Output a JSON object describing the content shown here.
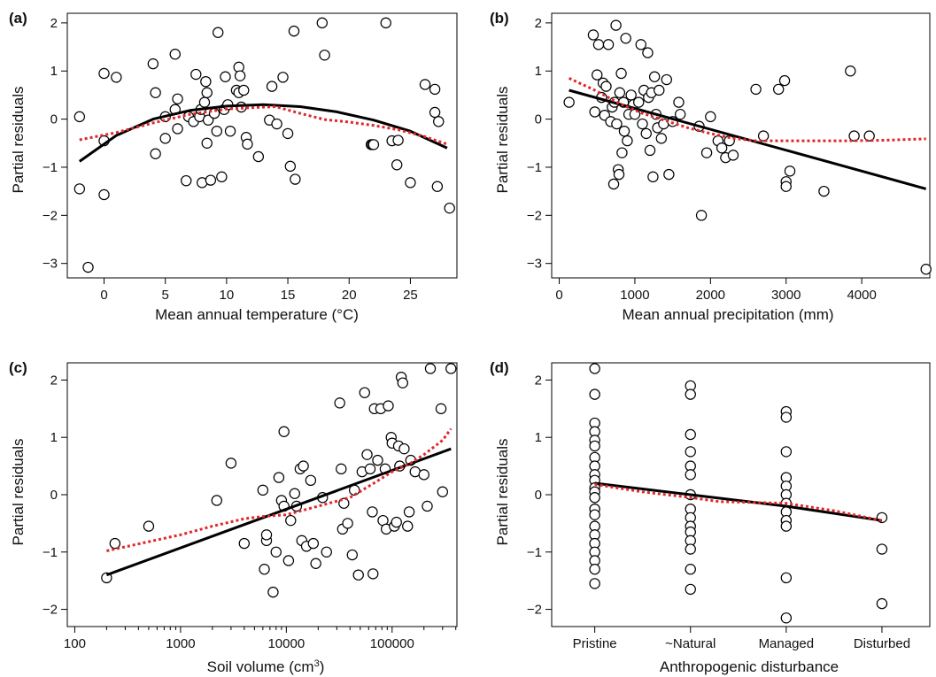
{
  "colors": {
    "fit_line": "#000000",
    "smooth_line": "#e0262b",
    "point_stroke": "#000000",
    "axis": "#000000"
  },
  "chart_data": [
    {
      "panel": "(a)",
      "type": "scatter",
      "xlabel": "Mean annual temperature (°C)",
      "ylabel": "Partial residuals",
      "x_ticks": [
        0,
        5,
        10,
        15,
        20,
        25
      ],
      "y_ticks": [
        -3,
        -2,
        -1,
        0,
        1,
        2
      ],
      "xlim": [
        -3,
        28.8
      ],
      "ylim": [
        -3.3,
        2.2
      ],
      "points": [
        [
          -2,
          0.05
        ],
        [
          -2,
          -1.45
        ],
        [
          -1.3,
          -3.08
        ],
        [
          0,
          0.95
        ],
        [
          0,
          -0.45
        ],
        [
          0,
          -1.57
        ],
        [
          1,
          0.87
        ],
        [
          4,
          1.15
        ],
        [
          4.2,
          0.55
        ],
        [
          4.2,
          -0.72
        ],
        [
          5,
          0.05
        ],
        [
          5,
          -0.4
        ],
        [
          5.8,
          1.35
        ],
        [
          5.8,
          0.2
        ],
        [
          6,
          -0.2
        ],
        [
          6,
          0.42
        ],
        [
          6.7,
          -1.28
        ],
        [
          6.9,
          0.05
        ],
        [
          7.3,
          -0.05
        ],
        [
          7.5,
          0.93
        ],
        [
          7.8,
          0.05
        ],
        [
          7.9,
          0.2
        ],
        [
          8,
          -1.32
        ],
        [
          8.2,
          0.35
        ],
        [
          8.3,
          0.78
        ],
        [
          8.4,
          0.55
        ],
        [
          8.4,
          -0.5
        ],
        [
          8.5,
          -0.02
        ],
        [
          8.7,
          -1.27
        ],
        [
          9,
          0.12
        ],
        [
          9.2,
          -0.25
        ],
        [
          9.3,
          1.8
        ],
        [
          9.6,
          -1.2
        ],
        [
          9.8,
          0.2
        ],
        [
          9.9,
          0.88
        ],
        [
          10.1,
          0.3
        ],
        [
          10.3,
          -0.25
        ],
        [
          10.8,
          0.6
        ],
        [
          11,
          1.08
        ],
        [
          11.1,
          0.9
        ],
        [
          11,
          0.55
        ],
        [
          11.2,
          0.25
        ],
        [
          11.4,
          0.6
        ],
        [
          11.6,
          -0.38
        ],
        [
          11.7,
          -0.52
        ],
        [
          12.6,
          -0.78
        ],
        [
          13.5,
          -0.02
        ],
        [
          13.7,
          0.68
        ],
        [
          14.1,
          -0.1
        ],
        [
          14.6,
          0.87
        ],
        [
          15,
          -0.3
        ],
        [
          15.2,
          -0.98
        ],
        [
          15.5,
          1.83
        ],
        [
          15.6,
          -1.25
        ],
        [
          17.8,
          2.0
        ],
        [
          18,
          1.33
        ],
        [
          21.8,
          -0.53
        ],
        [
          21.9,
          -0.53
        ],
        [
          22,
          -0.53
        ],
        [
          23,
          2.0
        ],
        [
          23.5,
          -0.45
        ],
        [
          23.9,
          -0.95
        ],
        [
          24,
          -0.44
        ],
        [
          25,
          -1.32
        ],
        [
          26.2,
          0.72
        ],
        [
          27,
          0.62
        ],
        [
          27,
          0.14
        ],
        [
          27.2,
          -1.4
        ],
        [
          27.3,
          -0.05
        ],
        [
          28.2,
          -1.85
        ]
      ],
      "fit_line": [
        [
          -2,
          -0.88
        ],
        [
          1,
          -0.34
        ],
        [
          4,
          0.0
        ],
        [
          7,
          0.18
        ],
        [
          10,
          0.27
        ],
        [
          13,
          0.3
        ],
        [
          16,
          0.26
        ],
        [
          19,
          0.15
        ],
        [
          22,
          -0.02
        ],
        [
          25,
          -0.25
        ],
        [
          28,
          -0.6
        ]
      ],
      "smooth_line": [
        [
          -2,
          -0.43
        ],
        [
          1,
          -0.28
        ],
        [
          4,
          -0.08
        ],
        [
          7,
          0.1
        ],
        [
          10,
          0.21
        ],
        [
          12,
          0.24
        ],
        [
          14,
          0.26
        ],
        [
          16,
          0.12
        ],
        [
          18,
          -0.01
        ],
        [
          20,
          -0.06
        ],
        [
          22,
          -0.13
        ],
        [
          24,
          -0.22
        ],
        [
          26,
          -0.35
        ],
        [
          28,
          -0.52
        ]
      ]
    },
    {
      "panel": "(b)",
      "type": "scatter",
      "xlabel": "Mean annual precipitation (mm)",
      "ylabel": "Partial residuals",
      "x_ticks": [
        0,
        1000,
        2000,
        3000,
        4000
      ],
      "y_ticks": [
        -3,
        -2,
        -1,
        0,
        1,
        2
      ],
      "xlim": [
        -100,
        4900
      ],
      "ylim": [
        -3.3,
        2.2
      ],
      "points": [
        [
          130,
          0.35
        ],
        [
          450,
          1.75
        ],
        [
          470,
          0.15
        ],
        [
          500,
          0.92
        ],
        [
          520,
          1.55
        ],
        [
          560,
          0.45
        ],
        [
          580,
          0.75
        ],
        [
          600,
          0.08
        ],
        [
          620,
          0.68
        ],
        [
          650,
          1.55
        ],
        [
          680,
          -0.05
        ],
        [
          700,
          0.25
        ],
        [
          720,
          -1.35
        ],
        [
          730,
          0.35
        ],
        [
          750,
          1.95
        ],
        [
          760,
          -0.1
        ],
        [
          780,
          -1.05
        ],
        [
          790,
          -1.15
        ],
        [
          800,
          0.55
        ],
        [
          820,
          0.95
        ],
        [
          830,
          -0.7
        ],
        [
          850,
          0.35
        ],
        [
          860,
          -0.25
        ],
        [
          880,
          1.68
        ],
        [
          900,
          -0.45
        ],
        [
          920,
          0.1
        ],
        [
          950,
          0.5
        ],
        [
          980,
          0.3
        ],
        [
          1000,
          0.1
        ],
        [
          1050,
          0.35
        ],
        [
          1080,
          1.55
        ],
        [
          1100,
          -0.1
        ],
        [
          1120,
          0.6
        ],
        [
          1150,
          -0.3
        ],
        [
          1170,
          1.38
        ],
        [
          1180,
          0.45
        ],
        [
          1200,
          -0.65
        ],
        [
          1220,
          0.55
        ],
        [
          1240,
          -1.2
        ],
        [
          1260,
          0.88
        ],
        [
          1280,
          0.1
        ],
        [
          1300,
          -0.18
        ],
        [
          1320,
          0.6
        ],
        [
          1350,
          -0.4
        ],
        [
          1380,
          -0.1
        ],
        [
          1420,
          0.82
        ],
        [
          1450,
          -1.15
        ],
        [
          1500,
          -0.05
        ],
        [
          1580,
          0.35
        ],
        [
          1600,
          0.1
        ],
        [
          1850,
          -0.15
        ],
        [
          1880,
          -2.0
        ],
        [
          1950,
          -0.7
        ],
        [
          2000,
          0.05
        ],
        [
          2100,
          -0.45
        ],
        [
          2150,
          -0.6
        ],
        [
          2200,
          -0.8
        ],
        [
          2250,
          -0.45
        ],
        [
          2300,
          -0.75
        ],
        [
          2600,
          0.62
        ],
        [
          2700,
          -0.35
        ],
        [
          2900,
          0.62
        ],
        [
          2980,
          0.8
        ],
        [
          3000,
          -1.3
        ],
        [
          3000,
          -1.4
        ],
        [
          3050,
          -1.08
        ],
        [
          3500,
          -1.5
        ],
        [
          3850,
          1.0
        ],
        [
          3900,
          -0.35
        ],
        [
          4100,
          -0.35
        ],
        [
          4850,
          -3.12
        ]
      ],
      "fit_line": [
        [
          130,
          0.6
        ],
        [
          4850,
          -1.45
        ]
      ],
      "smooth_line": [
        [
          130,
          0.85
        ],
        [
          500,
          0.58
        ],
        [
          800,
          0.32
        ],
        [
          1100,
          0.12
        ],
        [
          1400,
          -0.03
        ],
        [
          1700,
          -0.18
        ],
        [
          2000,
          -0.3
        ],
        [
          2300,
          -0.4
        ],
        [
          2600,
          -0.45
        ],
        [
          2900,
          -0.45
        ],
        [
          3300,
          -0.45
        ],
        [
          3800,
          -0.45
        ],
        [
          4300,
          -0.44
        ],
        [
          4850,
          -0.41
        ]
      ]
    },
    {
      "panel": "(c)",
      "type": "scatter",
      "x_scale": "log",
      "xlabel": "Soil volume (cm",
      "xlabel_sup": "3",
      "xlabel_end": ")",
      "ylabel": "Partial residuals",
      "x_ticks": [
        100,
        1000,
        10000,
        100000
      ],
      "x_tick_labels": [
        "100",
        "1000",
        "10000",
        "100000"
      ],
      "y_ticks": [
        -2,
        -1,
        0,
        1,
        2
      ],
      "xlim": [
        85,
        410000
      ],
      "ylim": [
        -2.3,
        2.3
      ],
      "points": [
        [
          200,
          -1.45
        ],
        [
          240,
          -0.85
        ],
        [
          500,
          -0.55
        ],
        [
          2200,
          -0.1
        ],
        [
          3000,
          0.55
        ],
        [
          4000,
          -0.85
        ],
        [
          6000,
          0.08
        ],
        [
          6200,
          -1.3
        ],
        [
          6500,
          -0.8
        ],
        [
          6500,
          -0.7
        ],
        [
          7500,
          -1.7
        ],
        [
          8000,
          -1.0
        ],
        [
          8500,
          0.3
        ],
        [
          9000,
          -0.1
        ],
        [
          9500,
          1.1
        ],
        [
          9500,
          -0.2
        ],
        [
          10500,
          -1.15
        ],
        [
          11000,
          -0.45
        ],
        [
          12000,
          0.02
        ],
        [
          12500,
          -0.2
        ],
        [
          13500,
          0.45
        ],
        [
          14000,
          -0.8
        ],
        [
          14500,
          0.5
        ],
        [
          15500,
          -0.9
        ],
        [
          17000,
          0.25
        ],
        [
          18000,
          -0.85
        ],
        [
          19000,
          -1.2
        ],
        [
          22000,
          -0.05
        ],
        [
          24000,
          -1.0
        ],
        [
          32000,
          1.6
        ],
        [
          33000,
          0.45
        ],
        [
          34000,
          -0.6
        ],
        [
          35000,
          -0.15
        ],
        [
          38000,
          -0.5
        ],
        [
          42000,
          -1.05
        ],
        [
          44000,
          0.08
        ],
        [
          48000,
          -1.4
        ],
        [
          52000,
          0.4
        ],
        [
          55000,
          1.78
        ],
        [
          58000,
          0.7
        ],
        [
          62000,
          0.45
        ],
        [
          65000,
          -0.3
        ],
        [
          66000,
          -1.38
        ],
        [
          68000,
          1.5
        ],
        [
          73000,
          0.6
        ],
        [
          78000,
          1.5
        ],
        [
          82000,
          -0.45
        ],
        [
          86000,
          0.45
        ],
        [
          88000,
          -0.6
        ],
        [
          92000,
          1.55
        ],
        [
          98000,
          1.0
        ],
        [
          100000,
          0.9
        ],
        [
          105000,
          -0.55
        ],
        [
          110000,
          -0.48
        ],
        [
          115000,
          0.85
        ],
        [
          118000,
          0.5
        ],
        [
          122000,
          2.05
        ],
        [
          126000,
          1.95
        ],
        [
          130000,
          0.8
        ],
        [
          140000,
          -0.55
        ],
        [
          145000,
          -0.3
        ],
        [
          150000,
          0.6
        ],
        [
          165000,
          0.4
        ],
        [
          200000,
          0.35
        ],
        [
          215000,
          -0.2
        ],
        [
          230000,
          2.2
        ],
        [
          290000,
          1.5
        ],
        [
          300000,
          0.05
        ],
        [
          360000,
          2.2
        ]
      ],
      "fit_line": [
        [
          200,
          -1.4
        ],
        [
          360000,
          0.8
        ]
      ],
      "smooth_line": [
        [
          200,
          -0.98
        ],
        [
          500,
          -0.82
        ],
        [
          1000,
          -0.7
        ],
        [
          2000,
          -0.55
        ],
        [
          4000,
          -0.42
        ],
        [
          6000,
          -0.38
        ],
        [
          10000,
          -0.35
        ],
        [
          20000,
          -0.2
        ],
        [
          40000,
          -0.05
        ],
        [
          70000,
          0.22
        ],
        [
          100000,
          0.4
        ],
        [
          150000,
          0.55
        ],
        [
          200000,
          0.7
        ],
        [
          300000,
          0.95
        ],
        [
          360000,
          1.15
        ]
      ]
    },
    {
      "panel": "(d)",
      "type": "scatter",
      "xlabel": "Anthropogenic disturbance",
      "ylabel": "Partial residuals",
      "categories": [
        "Pristine",
        "~Natural",
        "Managed",
        "Disturbed"
      ],
      "y_ticks": [
        -2,
        -1,
        0,
        1,
        2
      ],
      "xlim": [
        0.55,
        4.5
      ],
      "ylim": [
        -2.3,
        2.3
      ],
      "points": [
        [
          1,
          2.2
        ],
        [
          1,
          1.75
        ],
        [
          1,
          1.25
        ],
        [
          1,
          1.1
        ],
        [
          1,
          0.95
        ],
        [
          1,
          0.85
        ],
        [
          1,
          0.65
        ],
        [
          1,
          0.5
        ],
        [
          1,
          0.35
        ],
        [
          1,
          0.25
        ],
        [
          1,
          0.12
        ],
        [
          1,
          0.05
        ],
        [
          1,
          -0.05
        ],
        [
          1,
          -0.25
        ],
        [
          1,
          -0.35
        ],
        [
          1,
          -0.55
        ],
        [
          1,
          -0.7
        ],
        [
          1,
          -0.85
        ],
        [
          1,
          -1.0
        ],
        [
          1,
          -1.15
        ],
        [
          1,
          -1.3
        ],
        [
          1,
          -1.55
        ],
        [
          2,
          1.9
        ],
        [
          2,
          1.75
        ],
        [
          2,
          1.05
        ],
        [
          2,
          0.75
        ],
        [
          2,
          0.5
        ],
        [
          2,
          0.35
        ],
        [
          2,
          0.0
        ],
        [
          2,
          -0.25
        ],
        [
          2,
          -0.4
        ],
        [
          2,
          -0.55
        ],
        [
          2,
          -0.65
        ],
        [
          2,
          -0.8
        ],
        [
          2,
          -0.95
        ],
        [
          2,
          -1.3
        ],
        [
          2,
          -1.65
        ],
        [
          3,
          1.45
        ],
        [
          3,
          1.35
        ],
        [
          3,
          0.75
        ],
        [
          3,
          0.3
        ],
        [
          3,
          0.15
        ],
        [
          3,
          0.0
        ],
        [
          3,
          -0.15
        ],
        [
          3,
          -0.3
        ],
        [
          3,
          -0.45
        ],
        [
          3,
          -0.55
        ],
        [
          3,
          -1.45
        ],
        [
          3,
          -2.15
        ],
        [
          4,
          -0.4
        ],
        [
          4,
          -0.95
        ],
        [
          4,
          -1.9
        ]
      ],
      "fit_line": [
        [
          1,
          0.2
        ],
        [
          2,
          0.0
        ],
        [
          3,
          -0.2
        ],
        [
          4,
          -0.45
        ]
      ],
      "smooth_line": [
        [
          1,
          0.18
        ],
        [
          1.5,
          0.05
        ],
        [
          2,
          -0.05
        ],
        [
          2.3,
          -0.12
        ],
        [
          3,
          -0.15
        ],
        [
          3.5,
          -0.28
        ],
        [
          4,
          -0.45
        ]
      ]
    }
  ]
}
